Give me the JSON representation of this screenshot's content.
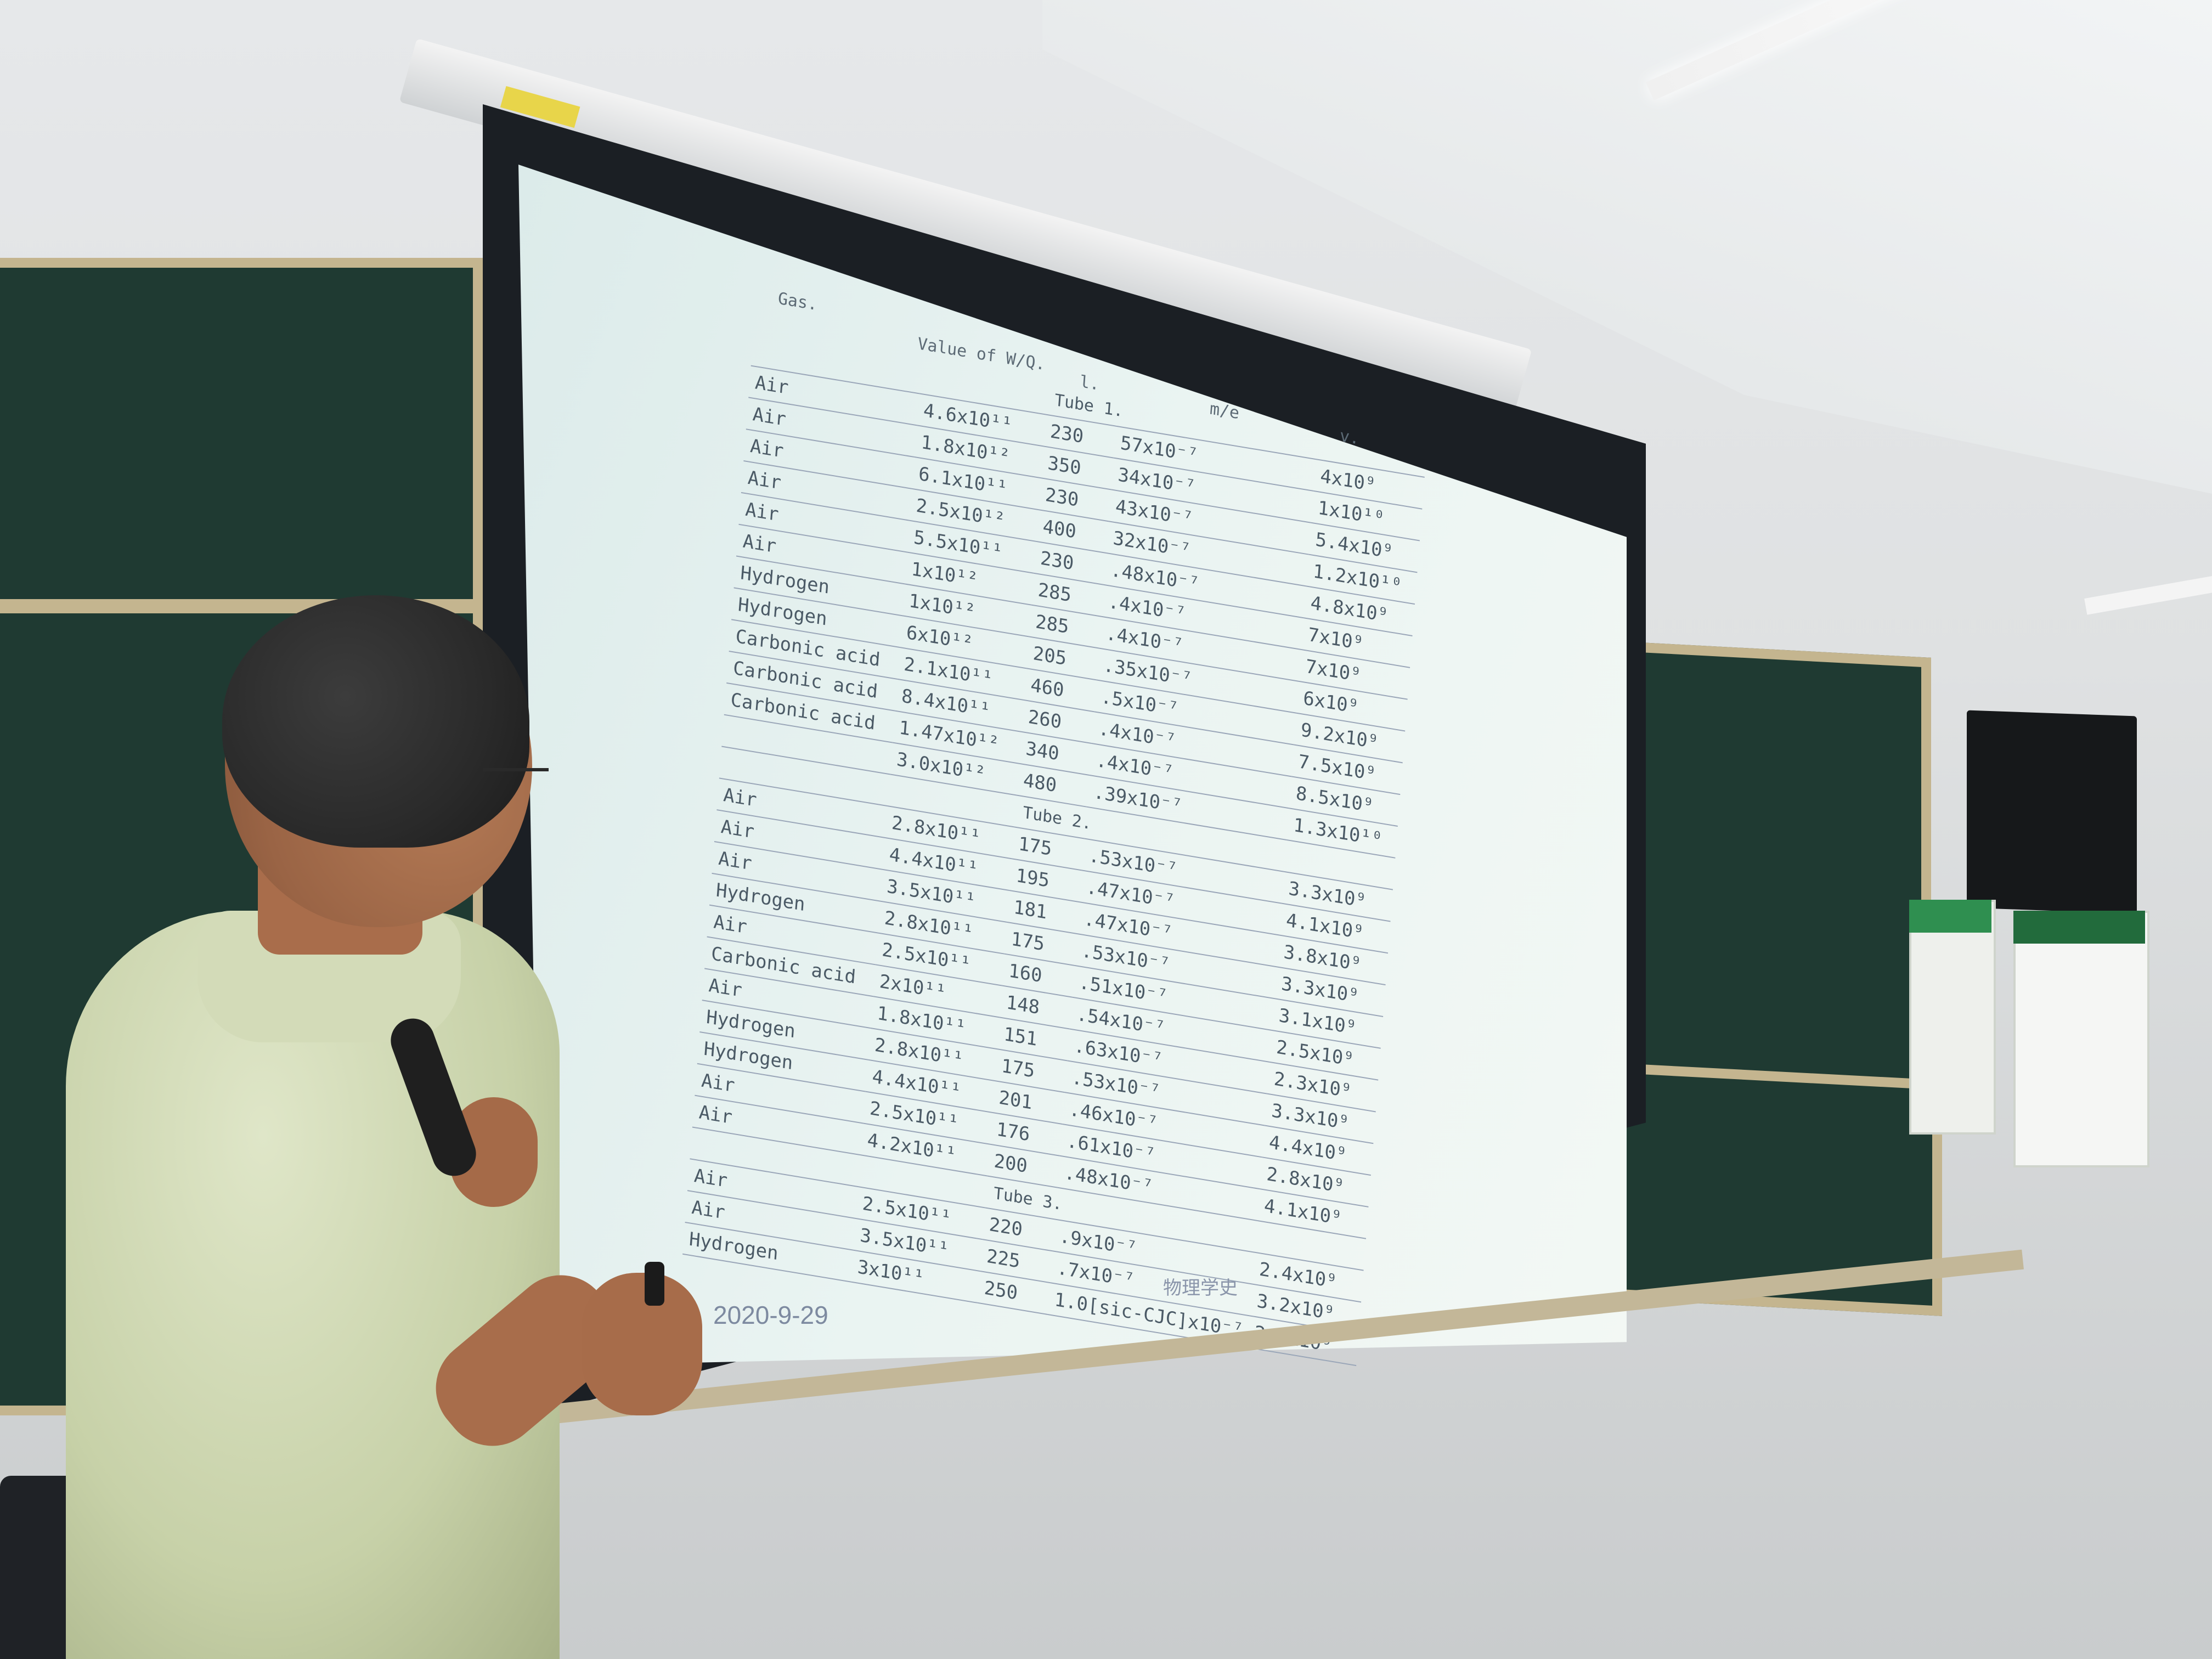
{
  "photo": {
    "description_colors": {
      "screen": "#eaf4f2",
      "slide_text": "#4b5a66",
      "board": "#1f3a32",
      "shirt": "#c7d1a8"
    }
  },
  "slide": {
    "header": {
      "gas": "Gas.",
      "wq": "Value of W/Q.",
      "i": "l.",
      "me": "m/e",
      "v": "v."
    },
    "tube1_label": "Tube 1.",
    "tube2_label": "Tube 2.",
    "tube3_label": "Tube 3.",
    "tube1": [
      {
        "gas": "Air",
        "wq": "4.6x10¹¹",
        "i": "230",
        "me": "57x10⁻⁷",
        "v": "4x10⁹"
      },
      {
        "gas": "Air",
        "wq": "1.8x10¹²",
        "i": "350",
        "me": "34x10⁻⁷",
        "v": "1x10¹⁰"
      },
      {
        "gas": "Air",
        "wq": "6.1x10¹¹",
        "i": "230",
        "me": "43x10⁻⁷",
        "v": "5.4x10⁹"
      },
      {
        "gas": "Air",
        "wq": "2.5x10¹²",
        "i": "400",
        "me": "32x10⁻⁷",
        "v": "1.2x10¹⁰"
      },
      {
        "gas": "Air",
        "wq": "5.5x10¹¹",
        "i": "230",
        "me": ".48x10⁻⁷",
        "v": "4.8x10⁹"
      },
      {
        "gas": "Air",
        "wq": "1x10¹²",
        "i": "285",
        "me": ".4x10⁻⁷",
        "v": "7x10⁹"
      },
      {
        "gas": "Hydrogen",
        "wq": "1x10¹²",
        "i": "285",
        "me": ".4x10⁻⁷",
        "v": "7x10⁹"
      },
      {
        "gas": "Hydrogen",
        "wq": "6x10¹²",
        "i": "205",
        "me": ".35x10⁻⁷",
        "v": "6x10⁹"
      },
      {
        "gas": "Carbonic acid",
        "wq": "2.1x10¹¹",
        "i": "460",
        "me": ".5x10⁻⁷",
        "v": "9.2x10⁹"
      },
      {
        "gas": "Carbonic acid",
        "wq": "8.4x10¹¹",
        "i": "260",
        "me": ".4x10⁻⁷",
        "v": "7.5x10⁹"
      },
      {
        "gas": "Carbonic acid",
        "wq": "1.47x10¹²",
        "i": "340",
        "me": ".4x10⁻⁷",
        "v": "8.5x10⁹"
      },
      {
        "gas": "",
        "wq": "3.0x10¹²",
        "i": "480",
        "me": ".39x10⁻⁷",
        "v": "1.3x10¹⁰"
      }
    ],
    "tube2": [
      {
        "gas": "Air",
        "wq": "2.8x10¹¹",
        "i": "175",
        "me": ".53x10⁻⁷",
        "v": "3.3x10⁹"
      },
      {
        "gas": "Air",
        "wq": "4.4x10¹¹",
        "i": "195",
        "me": ".47x10⁻⁷",
        "v": "4.1x10⁹"
      },
      {
        "gas": "Air",
        "wq": "3.5x10¹¹",
        "i": "181",
        "me": ".47x10⁻⁷",
        "v": "3.8x10⁹"
      },
      {
        "gas": "Hydrogen",
        "wq": "2.8x10¹¹",
        "i": "175",
        "me": ".53x10⁻⁷",
        "v": "3.3x10⁹"
      },
      {
        "gas": "Air",
        "wq": "2.5x10¹¹",
        "i": "160",
        "me": ".51x10⁻⁷",
        "v": "3.1x10⁹"
      },
      {
        "gas": "Carbonic acid",
        "wq": "2x10¹¹",
        "i": "148",
        "me": ".54x10⁻⁷",
        "v": "2.5x10⁹"
      },
      {
        "gas": "Air",
        "wq": "1.8x10¹¹",
        "i": "151",
        "me": ".63x10⁻⁷",
        "v": "2.3x10⁹"
      },
      {
        "gas": "Hydrogen",
        "wq": "2.8x10¹¹",
        "i": "175",
        "me": ".53x10⁻⁷",
        "v": "3.3x10⁹"
      },
      {
        "gas": "Hydrogen",
        "wq": "4.4x10¹¹",
        "i": "201",
        "me": ".46x10⁻⁷",
        "v": "4.4x10⁹"
      },
      {
        "gas": "Air",
        "wq": "2.5x10¹¹",
        "i": "176",
        "me": ".61x10⁻⁷",
        "v": "2.8x10⁹"
      },
      {
        "gas": "Air",
        "wq": "4.2x10¹¹",
        "i": "200",
        "me": ".48x10⁻⁷",
        "v": "4.1x10⁹"
      }
    ],
    "tube3": [
      {
        "gas": "Air",
        "wq": "2.5x10¹¹",
        "i": "220",
        "me": ".9x10⁻⁷",
        "v": "2.4x10⁹"
      },
      {
        "gas": "Air",
        "wq": "3.5x10¹¹",
        "i": "225",
        "me": ".7x10⁻⁷",
        "v": "3.2x10⁹"
      },
      {
        "gas": "Hydrogen",
        "wq": "3x10¹¹",
        "i": "250",
        "me": "1.0[sic-CJC]x10⁻⁷",
        "v": "2.5x10⁹"
      }
    ],
    "footer_title": "物理学史",
    "date": "2020-9-29"
  }
}
